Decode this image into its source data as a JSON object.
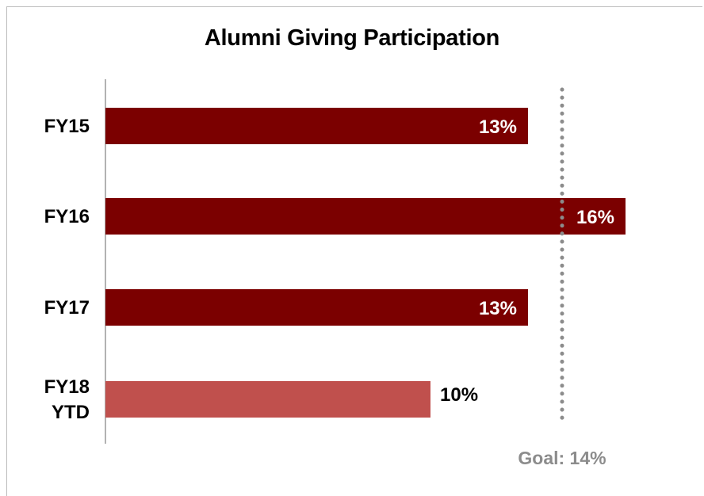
{
  "chart_data": {
    "type": "bar",
    "orientation": "horizontal",
    "title": "Alumni Giving Participation",
    "xlabel": "",
    "ylabel": "",
    "xlim": [
      0,
      16
    ],
    "grid": false,
    "categories": [
      [
        "FY15"
      ],
      [
        "FY16"
      ],
      [
        "FY17"
      ],
      [
        "FY18",
        "YTD"
      ]
    ],
    "values": [
      13,
      16,
      13,
      10
    ],
    "data_labels": [
      "13%",
      "16%",
      "13%",
      "10%"
    ],
    "bar_colors": [
      "#7b0000",
      "#7b0000",
      "#7b0000",
      "#c0504d"
    ],
    "label_colors": [
      "#ffffff",
      "#ffffff",
      "#ffffff",
      "#000000"
    ],
    "label_inside": [
      true,
      true,
      true,
      false
    ],
    "goal": {
      "value": 14,
      "label": "Goal: 14%",
      "color": "#8c8c8c"
    }
  }
}
